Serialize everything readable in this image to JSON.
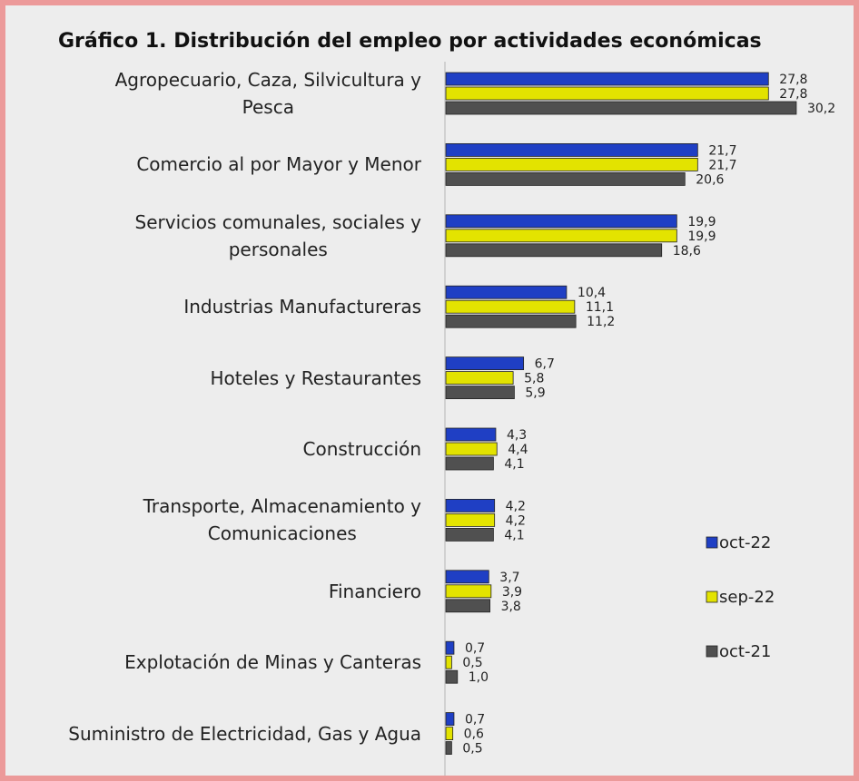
{
  "chart_data": {
    "type": "bar",
    "orientation": "horizontal",
    "title": "Gráfico 1. Distribución del empleo por actividades económicas",
    "categories": [
      "Agropecuario, Caza, Silvicultura y\nPesca",
      "Comercio al por Mayor y Menor",
      "Servicios comunales, sociales y\npersonales",
      "Industrias Manufactureras",
      "Hoteles y Restaurantes",
      "Construcción",
      "Transporte, Almacenamiento y\nComunicaciones",
      "Financiero",
      "Explotación de Minas y Canteras",
      "Suministro de Electricidad, Gas y Agua"
    ],
    "series": [
      {
        "name": "oct-22",
        "color": "#1f3fc4",
        "values": [
          27.8,
          21.7,
          19.9,
          10.4,
          6.7,
          4.3,
          4.2,
          3.7,
          0.7,
          0.7
        ],
        "value_labels": [
          "27,8",
          "21,7",
          "19,9",
          "10,4",
          "6,7",
          "4,3",
          "4,2",
          "3,7",
          "0,7",
          "0,7"
        ]
      },
      {
        "name": "sep-22",
        "color": "#e3e300",
        "values": [
          27.8,
          21.7,
          19.9,
          11.1,
          5.8,
          4.4,
          4.2,
          3.9,
          0.5,
          0.6
        ],
        "value_labels": [
          "27,8",
          "21,7",
          "19,9",
          "11,1",
          "5,8",
          "4,4",
          "4,2",
          "3,9",
          "0,5",
          "0,6"
        ]
      },
      {
        "name": "oct-21",
        "color": "#505050",
        "values": [
          30.2,
          20.6,
          18.6,
          11.2,
          5.9,
          4.1,
          4.1,
          3.8,
          1.0,
          0.5
        ],
        "value_labels": [
          "30,2",
          "20,6",
          "18,6",
          "11,2",
          "5,9",
          "4,1",
          "4,1",
          "3,8",
          "1,0",
          "0,5"
        ]
      }
    ],
    "legend": "right"
  }
}
